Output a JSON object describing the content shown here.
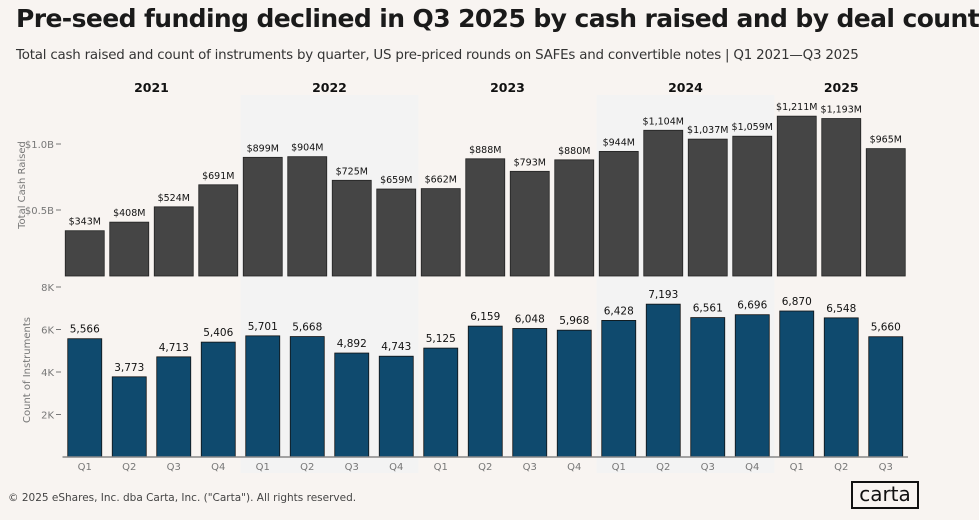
{
  "title": "Pre-seed funding declined in Q3 2025 by cash raised and by deal count",
  "subtitle": "Total cash raised and count of instruments by quarter, US pre-priced rounds on SAFEs and convertible notes | Q1 2021—Q3 2025",
  "footer": "© 2025 eShares, Inc. dba Carta, Inc. (\"Carta\"). All rights reserved.",
  "logo": "carta",
  "colors": {
    "cash": "#454545",
    "count": "#0f4a6e",
    "background": "#f8f4f1",
    "shade": "#f3f3f3"
  },
  "chart_data": [
    {
      "type": "bar",
      "ylabel": "Total Cash Raised",
      "ylim": [
        0,
        1.3
      ],
      "yticks": [
        {
          "v": 0.5,
          "label": "$0.5B"
        },
        {
          "v": 1.0,
          "label": "$1.0B"
        }
      ],
      "years": [
        "2021",
        "2022",
        "2023",
        "2024",
        "2025"
      ],
      "categories": [
        "Q1",
        "Q2",
        "Q3",
        "Q4",
        "Q1",
        "Q2",
        "Q3",
        "Q4",
        "Q1",
        "Q2",
        "Q3",
        "Q4",
        "Q1",
        "Q2",
        "Q3",
        "Q4",
        "Q1",
        "Q2",
        "Q3"
      ],
      "values": [
        343,
        408,
        524,
        691,
        899,
        904,
        725,
        659,
        662,
        888,
        793,
        880,
        944,
        1104,
        1037,
        1059,
        1211,
        1193,
        965
      ],
      "labels": [
        "$343M",
        "$408M",
        "$524M",
        "$691M",
        "$899M",
        "$904M",
        "$725M",
        "$659M",
        "$662M",
        "$888M",
        "$793M",
        "$880M",
        "$944M",
        "$1,104M",
        "$1,037M",
        "$1,059M",
        "$1,211M",
        "$1,193M",
        "$965M"
      ]
    },
    {
      "type": "bar",
      "ylabel": "Count of Instruments",
      "ylim": [
        0,
        8000
      ],
      "yticks": [
        {
          "v": 2000,
          "label": "2K"
        },
        {
          "v": 4000,
          "label": "4K"
        },
        {
          "v": 6000,
          "label": "6K"
        },
        {
          "v": 8000,
          "label": "8K"
        }
      ],
      "categories": [
        "Q1",
        "Q2",
        "Q3",
        "Q4",
        "Q1",
        "Q2",
        "Q3",
        "Q4",
        "Q1",
        "Q2",
        "Q3",
        "Q4",
        "Q1",
        "Q2",
        "Q3",
        "Q4",
        "Q1",
        "Q2",
        "Q3"
      ],
      "values": [
        5566,
        3773,
        4713,
        5406,
        5701,
        5668,
        4892,
        4743,
        5125,
        6159,
        6048,
        5968,
        6428,
        7193,
        6561,
        6696,
        6870,
        6548,
        5660
      ],
      "labels": [
        "5,566",
        "3,773",
        "4,713",
        "5,406",
        "5,701",
        "5,668",
        "4,892",
        "4,743",
        "5,125",
        "6,159",
        "6,048",
        "5,968",
        "6,428",
        "7,193",
        "6,561",
        "6,696",
        "6,870",
        "6,548",
        "5,660"
      ]
    }
  ]
}
